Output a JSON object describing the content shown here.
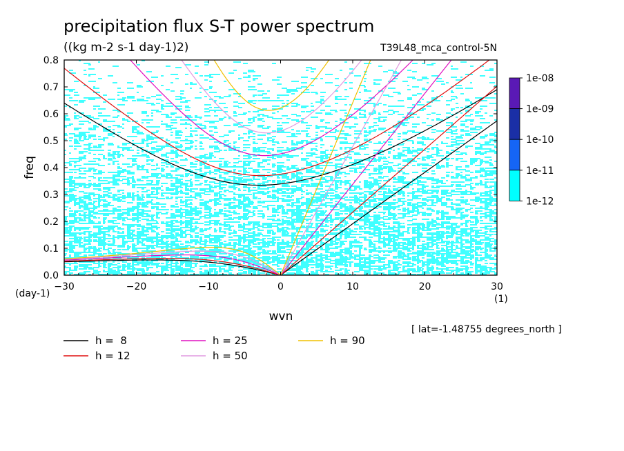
{
  "chart_data": {
    "type": "heatmap",
    "title": "precipitation flux S-T power spectrum",
    "subtitle": "((kg m-2 s-1 day-1)2)",
    "run_label": "T39L48_mca_control-5N",
    "xlabel": "wvn",
    "ylabel": "freq",
    "x_unit": "(1)",
    "y_unit": "(day-1)",
    "xlim": [
      -30,
      30
    ],
    "ylim": [
      0,
      0.8
    ],
    "x_ticks": [
      "-30",
      "-20",
      "-10",
      "0",
      "10",
      "20",
      "30"
    ],
    "y_ticks": [
      "0.0",
      "0.1",
      "0.2",
      "0.3",
      "0.4",
      "0.5",
      "0.6",
      "0.7",
      "0.8"
    ],
    "footnote": "[ lat=-1.48755 degrees_north ]",
    "colorbar": {
      "labels": [
        "1e-08",
        "1e-09",
        "1e-10",
        "1e-11",
        "1e-12"
      ],
      "colors": [
        "#5a19b5",
        "#1a2fa6",
        "#1565f5",
        "#00ffff"
      ]
    },
    "heatmap_color": "#00ffff",
    "dispersion_curves": [
      {
        "label": "h =  8",
        "h": 8,
        "color": "#000000"
      },
      {
        "label": "h = 12",
        "h": 12,
        "color": "#e01010"
      },
      {
        "label": "h = 25",
        "h": 25,
        "color": "#e010c0"
      },
      {
        "label": "h = 50",
        "h": 50,
        "color": "#e09ae0"
      },
      {
        "label": "h = 90",
        "h": 90,
        "color": "#f0c000"
      }
    ]
  }
}
